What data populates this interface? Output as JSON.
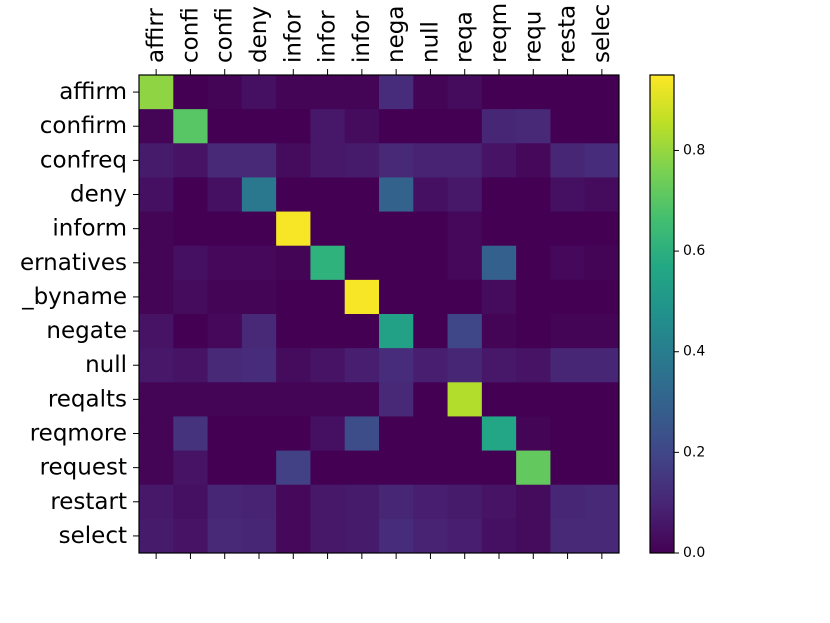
{
  "chart_data": {
    "type": "heatmap",
    "row_labels": [
      "affirm",
      "confirm",
      "confreq",
      "deny",
      "inform",
      "ernatives",
      "_byname",
      "negate",
      "null",
      "reqalts",
      "reqmore",
      "request",
      "restart",
      "select"
    ],
    "col_labels": [
      "affirr",
      "confi",
      "confi",
      "deny",
      "infor",
      "infor",
      "infor",
      "nega",
      "null",
      "reqa",
      "reqm",
      "requ",
      "resta",
      "selec"
    ],
    "values": [
      [
        0.79,
        0.0,
        0.01,
        0.04,
        0.01,
        0.01,
        0.01,
        0.12,
        0.01,
        0.03,
        0.0,
        0.0,
        0.0,
        0.0
      ],
      [
        0.01,
        0.7,
        0.0,
        0.0,
        0.0,
        0.06,
        0.03,
        0.0,
        0.0,
        0.0,
        0.1,
        0.11,
        0.0,
        0.0
      ],
      [
        0.07,
        0.05,
        0.11,
        0.11,
        0.03,
        0.06,
        0.07,
        0.11,
        0.09,
        0.09,
        0.05,
        0.02,
        0.1,
        0.12
      ],
      [
        0.04,
        0.0,
        0.04,
        0.38,
        0.0,
        0.0,
        0.0,
        0.3,
        0.04,
        0.06,
        0.0,
        0.0,
        0.04,
        0.03
      ],
      [
        0.01,
        0.0,
        0.0,
        0.0,
        0.94,
        0.0,
        0.0,
        0.0,
        0.0,
        0.02,
        0.0,
        0.0,
        0.0,
        0.0
      ],
      [
        0.01,
        0.04,
        0.02,
        0.02,
        0.01,
        0.61,
        0.0,
        0.0,
        0.0,
        0.02,
        0.29,
        0.0,
        0.02,
        0.01
      ],
      [
        0.01,
        0.03,
        0.01,
        0.01,
        0.0,
        0.0,
        0.94,
        0.0,
        0.0,
        0.0,
        0.03,
        0.0,
        0.0,
        0.0
      ],
      [
        0.05,
        0.0,
        0.02,
        0.11,
        0.0,
        0.0,
        0.0,
        0.54,
        0.0,
        0.2,
        0.01,
        0.0,
        0.01,
        0.01
      ],
      [
        0.06,
        0.05,
        0.11,
        0.12,
        0.03,
        0.05,
        0.08,
        0.12,
        0.08,
        0.1,
        0.06,
        0.05,
        0.1,
        0.1
      ],
      [
        0.01,
        0.01,
        0.01,
        0.01,
        0.01,
        0.01,
        0.01,
        0.11,
        0.0,
        0.84,
        0.0,
        0.0,
        0.0,
        0.0
      ],
      [
        0.01,
        0.14,
        0.0,
        0.0,
        0.0,
        0.04,
        0.22,
        0.0,
        0.0,
        0.0,
        0.56,
        0.01,
        0.0,
        0.0
      ],
      [
        0.01,
        0.05,
        0.0,
        0.0,
        0.18,
        0.0,
        0.0,
        0.0,
        0.0,
        0.0,
        0.0,
        0.72,
        0.0,
        0.0
      ],
      [
        0.06,
        0.04,
        0.1,
        0.09,
        0.02,
        0.06,
        0.07,
        0.1,
        0.08,
        0.07,
        0.05,
        0.03,
        0.1,
        0.11
      ],
      [
        0.07,
        0.05,
        0.11,
        0.1,
        0.02,
        0.06,
        0.07,
        0.12,
        0.09,
        0.08,
        0.04,
        0.03,
        0.11,
        0.11
      ]
    ],
    "vmin": 0.0,
    "vmax": 0.95,
    "colormap": "viridis",
    "colorbar_ticks": [
      0.0,
      0.2,
      0.4,
      0.6,
      0.8
    ],
    "colorbar_tick_labels": [
      "0.0",
      "0.2",
      "0.4",
      "0.6",
      "0.8"
    ]
  }
}
